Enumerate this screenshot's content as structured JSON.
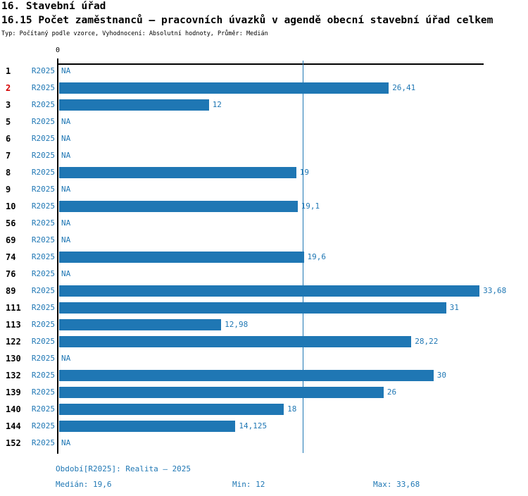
{
  "title": "16. Stavební úřad",
  "subtitle": "16.15 Počet zaměstnanců – pracovních úvazků v agendě obecní stavební úřad celkem",
  "meta": "Typ: Počítaný podle vzorce, Vyhodnocení: Absolutní hodnoty, Průměr: Medián",
  "colors": {
    "blue": "#1f77b4",
    "highlight": "#d40000",
    "axis": "#000000",
    "background": "#ffffff"
  },
  "chart_data": {
    "type": "bar",
    "orientation": "horizontal",
    "title": "16.15 Počet zaměstnanců – pracovních úvazků v agendě obecní stavební úřad celkem",
    "series_label": "R2025",
    "categories": [
      "1",
      "2",
      "3",
      "5",
      "6",
      "7",
      "8",
      "9",
      "10",
      "56",
      "69",
      "74",
      "76",
      "89",
      "111",
      "113",
      "122",
      "130",
      "132",
      "139",
      "140",
      "144",
      "152"
    ],
    "values": [
      null,
      26.41,
      12,
      null,
      null,
      null,
      19,
      null,
      19.1,
      null,
      null,
      19.6,
      null,
      33.68,
      31,
      12.98,
      28.22,
      null,
      30,
      26,
      18,
      14.125,
      null
    ],
    "value_labels": [
      "NA",
      "26,41",
      "12",
      "NA",
      "NA",
      "NA",
      "19",
      "NA",
      "19,1",
      "NA",
      "NA",
      "19,6",
      "NA",
      "33,68",
      "31",
      "12,98",
      "28,22",
      "NA",
      "30",
      "26",
      "18",
      "14,125",
      "NA"
    ],
    "na_label": "NA",
    "highlighted_category": "2",
    "x_axis_zero_label": "0",
    "xlim": [
      0,
      34.07
    ],
    "median_line_value": 19.6,
    "grid": false,
    "legend": false
  },
  "footer": {
    "period": "Období[R2025]: Realita – 2025",
    "median": "Medián: 19,6",
    "min": "Min: 12",
    "max": "Max: 33,68"
  },
  "stats": {
    "median": "19,6",
    "min": "12",
    "max": "33,68"
  }
}
